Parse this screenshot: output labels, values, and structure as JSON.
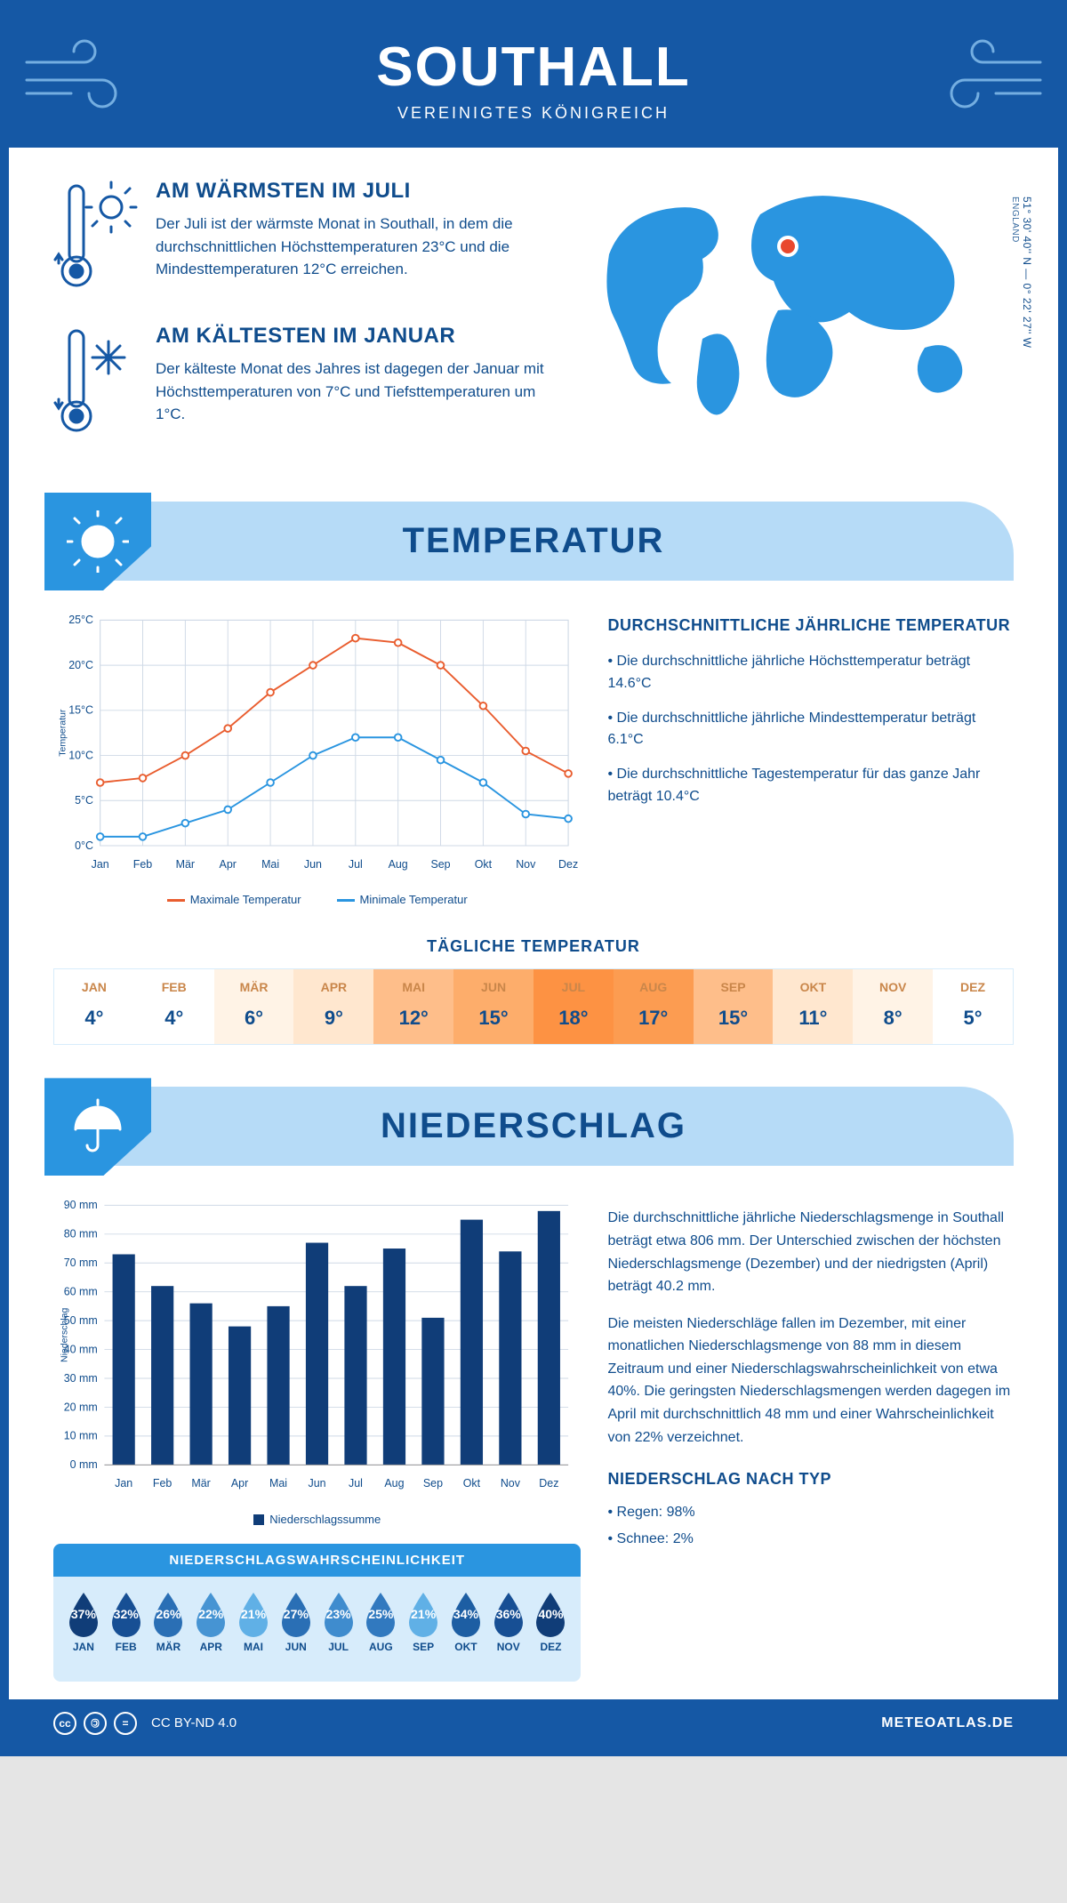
{
  "header": {
    "city": "SOUTHALL",
    "country": "VEREINIGTES KÖNIGREICH"
  },
  "coords": {
    "line1": "51° 30' 40'' N — 0° 22' 27'' W",
    "line2": "ENGLAND"
  },
  "facts": {
    "warm": {
      "title": "AM WÄRMSTEN IM JULI",
      "text": "Der Juli ist der wärmste Monat in Southall, in dem die durchschnittlichen Höchsttemperaturen 23°C und die Mindesttemperaturen 12°C erreichen."
    },
    "cold": {
      "title": "AM KÄLTESTEN IM JANUAR",
      "text": "Der kälteste Monat des Jahres ist dagegen der Januar mit Höchsttemperaturen von 7°C und Tiefsttemperaturen um 1°C."
    }
  },
  "sections": {
    "temp": "TEMPERATUR",
    "precip": "NIEDERSCHLAG"
  },
  "months": [
    "Jan",
    "Feb",
    "Mär",
    "Apr",
    "Mai",
    "Jun",
    "Jul",
    "Aug",
    "Sep",
    "Okt",
    "Nov",
    "Dez"
  ],
  "months_uc": [
    "JAN",
    "FEB",
    "MÄR",
    "APR",
    "MAI",
    "JUN",
    "JUL",
    "AUG",
    "SEP",
    "OKT",
    "NOV",
    "DEZ"
  ],
  "temp_chart": {
    "ylabel": "Temperatur",
    "ylim": [
      0,
      25
    ],
    "ytick_step": 5,
    "max": {
      "label": "Maximale Temperatur",
      "color": "#e95d2f",
      "values": [
        7,
        7.5,
        10,
        13,
        17,
        20,
        23,
        22.5,
        20,
        15.5,
        10.5,
        8
      ]
    },
    "min": {
      "label": "Minimale Temperatur",
      "color": "#2a95e0",
      "values": [
        1,
        1,
        2.5,
        4,
        7,
        10,
        12,
        12,
        9.5,
        7,
        3.5,
        3
      ]
    },
    "grid_color": "#cfd9e6",
    "bg": "#ffffff",
    "marker": "circle",
    "marker_size": 4,
    "line_width": 2
  },
  "temp_side": {
    "title": "DURCHSCHNITTLICHE JÄHRLICHE TEMPERATUR",
    "items": [
      "• Die durchschnittliche jährliche Höchsttemperatur beträgt 14.6°C",
      "• Die durchschnittliche jährliche Mindesttemperatur beträgt 6.1°C",
      "• Die durchschnittliche Tagestemperatur für das ganze Jahr beträgt 10.4°C"
    ]
  },
  "daily": {
    "title": "TÄGLICHE TEMPERATUR",
    "values": [
      "4°",
      "4°",
      "6°",
      "9°",
      "12°",
      "15°",
      "18°",
      "17°",
      "15°",
      "11°",
      "8°",
      "5°"
    ],
    "colors": [
      "#ffffff",
      "#ffffff",
      "#fff3e6",
      "#ffe7cf",
      "#febe8a",
      "#fdad6b",
      "#fd9243",
      "#fc9c51",
      "#febe8a",
      "#ffe7cf",
      "#fff3e6",
      "#ffffff"
    ]
  },
  "precip_chart": {
    "ylabel": "Niederschlag",
    "legend": "Niederschlagssumme",
    "ylim": [
      0,
      90
    ],
    "ytick_step": 10,
    "values": [
      73,
      62,
      56,
      48,
      55,
      77,
      62,
      75,
      51,
      85,
      74,
      88
    ],
    "bar_color": "#103d78",
    "grid_color": "#cfd9e6",
    "bar_width": 0.58
  },
  "precip_side": {
    "p1": "Die durchschnittliche jährliche Niederschlagsmenge in Southall beträgt etwa 806 mm. Der Unterschied zwischen der höchsten Niederschlagsmenge (Dezember) und der niedrigsten (April) beträgt 40.2 mm.",
    "p2": "Die meisten Niederschläge fallen im Dezember, mit einer monatlichen Niederschlagsmenge von 88 mm in diesem Zeitraum und einer Niederschlagswahrscheinlichkeit von etwa 40%. Die geringsten Niederschlagsmengen werden dagegen im April mit durchschnittlich 48 mm und einer Wahrscheinlichkeit von 22% verzeichnet.",
    "type_title": "NIEDERSCHLAG NACH TYP",
    "types": [
      "• Regen: 98%",
      "• Schnee: 2%"
    ]
  },
  "prob": {
    "title": "NIEDERSCHLAGSWAHRSCHEINLICHKEIT",
    "values": [
      "37%",
      "32%",
      "26%",
      "22%",
      "21%",
      "27%",
      "23%",
      "25%",
      "21%",
      "34%",
      "36%",
      "40%"
    ],
    "colors": [
      "#103d78",
      "#174f94",
      "#2a6fb5",
      "#4694d3",
      "#60b0e6",
      "#2a6fb5",
      "#3f8cce",
      "#3179bf",
      "#60b0e6",
      "#1d5ea3",
      "#174f94",
      "#103d78"
    ]
  },
  "footer": {
    "license": "CC BY-ND 4.0",
    "site": "METEOATLAS.DE"
  }
}
